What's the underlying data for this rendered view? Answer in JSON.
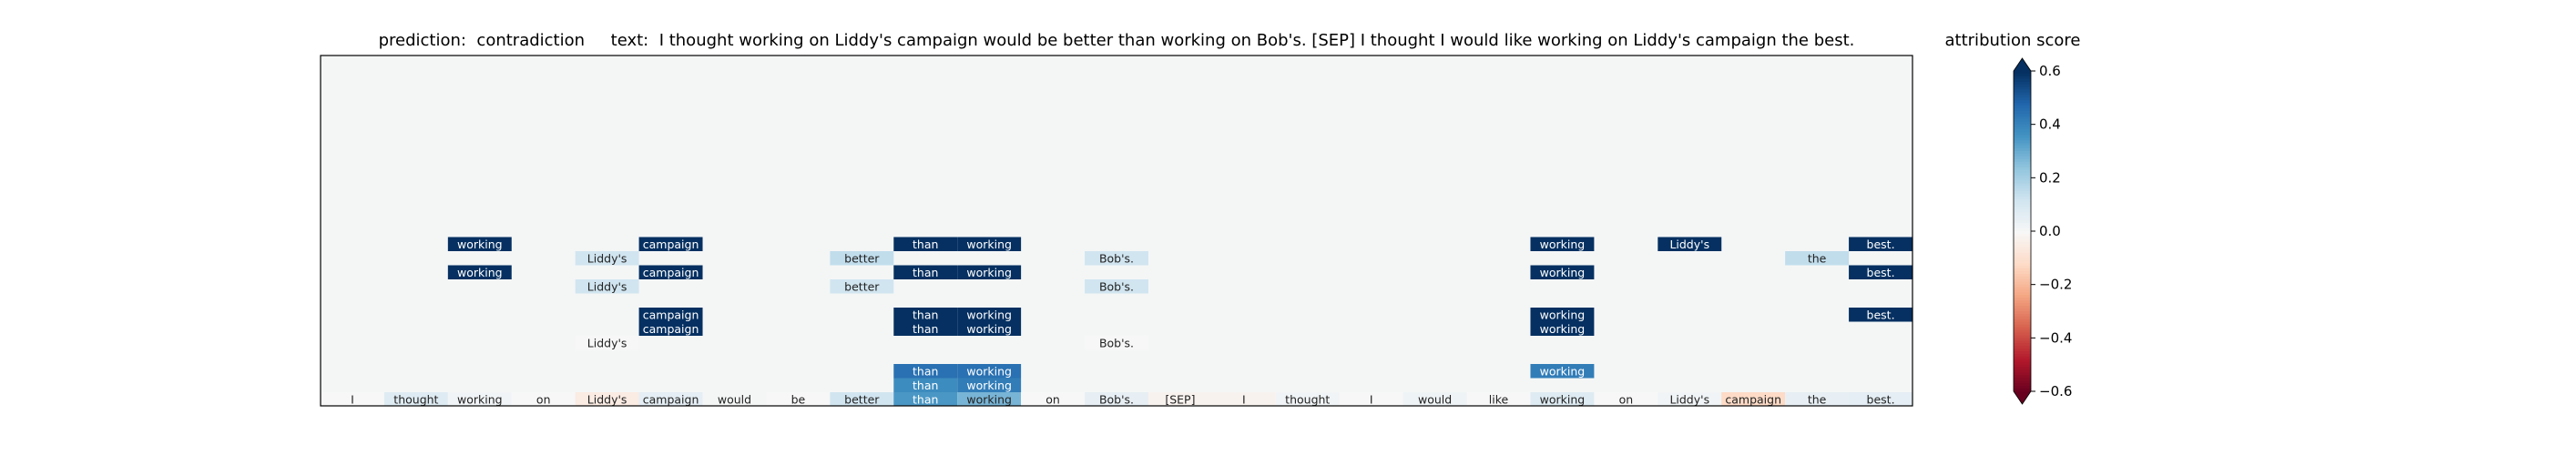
{
  "title": {
    "prediction_label": "prediction:",
    "prediction": "contradiction",
    "text_label": "text:",
    "text": "I thought working on Liddy's campaign would be better than working on Bob's. [SEP] I thought I would like working on Liddy's campaign the best."
  },
  "colorbar": {
    "label": "attribution score",
    "ticks": [
      "0.6",
      "0.4",
      "0.2",
      "0.0",
      "−0.2",
      "−0.4",
      "−0.6"
    ],
    "tick_values": [
      0.6,
      0.4,
      0.2,
      0.0,
      -0.2,
      -0.4,
      -0.6
    ],
    "range": [
      -0.6,
      0.6
    ],
    "colormap": "RdBu",
    "extend": "both"
  },
  "chart_data": {
    "type": "heatmap",
    "colormap": "RdBu",
    "value_range": [
      -0.6,
      0.6
    ],
    "background_color": "#f4f6f6",
    "tokens": [
      "I",
      "thought",
      "working",
      "on",
      "Liddy's",
      "campaign",
      "would",
      "be",
      "better",
      "than",
      "working",
      "on",
      "Bob's.",
      "[SEP]",
      "I",
      "thought",
      "I",
      "would",
      "like",
      "working",
      "on",
      "Liddy's",
      "campaign",
      "the",
      "best."
    ],
    "base_row": [
      0.0,
      0.08,
      0.02,
      0.0,
      -0.05,
      0.06,
      0.01,
      0.0,
      0.12,
      0.35,
      0.28,
      0.0,
      0.05,
      -0.02,
      -0.02,
      0.02,
      0.0,
      0.03,
      0.0,
      0.08,
      0.0,
      0.02,
      -0.12,
      0.05,
      0.06
    ],
    "rows": [
      {
        "cells": [
          [
            9,
            0.38
          ],
          [
            10,
            0.42
          ]
        ]
      },
      {
        "cells": [
          [
            9,
            0.45
          ],
          [
            10,
            0.45
          ],
          [
            19,
            0.42
          ]
        ]
      },
      {
        "cells": []
      },
      {
        "cells": [
          [
            4,
            0.0
          ],
          [
            12,
            0.0
          ]
        ]
      },
      {
        "cells": [
          [
            5,
            0.7
          ],
          [
            9,
            0.78
          ],
          [
            10,
            0.72
          ],
          [
            19,
            0.7
          ]
        ]
      },
      {
        "cells": [
          [
            5,
            0.7
          ],
          [
            9,
            0.75
          ],
          [
            10,
            0.7
          ],
          [
            19,
            0.7
          ],
          [
            24,
            0.72
          ]
        ]
      },
      {
        "cells": []
      },
      {
        "cells": [
          [
            4,
            0.12
          ],
          [
            8,
            0.12
          ],
          [
            12,
            0.12
          ]
        ]
      },
      {
        "cells": [
          [
            2,
            0.72
          ],
          [
            5,
            0.7
          ],
          [
            9,
            0.75
          ],
          [
            10,
            0.72
          ],
          [
            19,
            0.7
          ],
          [
            24,
            0.72
          ]
        ]
      },
      {
        "cells": [
          [
            4,
            0.12
          ],
          [
            8,
            0.15
          ],
          [
            12,
            0.12
          ],
          [
            23,
            0.15
          ]
        ]
      },
      {
        "cells": [
          [
            2,
            0.72
          ],
          [
            5,
            0.72
          ],
          [
            9,
            0.78
          ],
          [
            10,
            0.72
          ],
          [
            19,
            0.72
          ],
          [
            21,
            0.72
          ],
          [
            24,
            0.72
          ]
        ]
      }
    ]
  }
}
